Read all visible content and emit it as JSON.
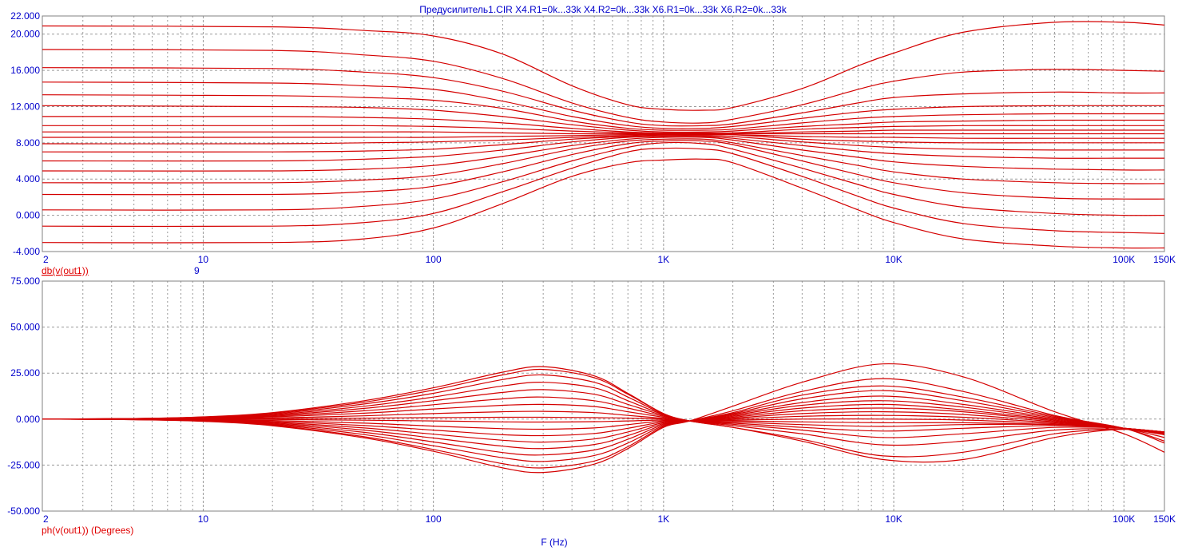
{
  "title": "Предусилитель1.CIR X4.R1=0k...33k X4.R2=0k...33k X6.R1=0k...33k X6.R2=0k...33k",
  "xlabel": "F (Hz)",
  "colors": {
    "trace": "#d40000",
    "axis_text": "#0000cc",
    "grid": "#9a9a9a",
    "frame": "#808080"
  },
  "chart_data": [
    {
      "type": "line",
      "ylabel": "db(v(out1))",
      "cursor_value": "9",
      "x_scale": "log",
      "xlim": [
        2,
        150000
      ],
      "ylim": [
        -4,
        22
      ],
      "x_tick_labels": [
        {
          "value": 2,
          "label": "2"
        },
        {
          "value": 10,
          "label": "10"
        },
        {
          "value": 100,
          "label": "100"
        },
        {
          "value": 1000,
          "label": "1K"
        },
        {
          "value": 10000,
          "label": "10K"
        },
        {
          "value": 100000,
          "label": "100K"
        },
        {
          "value": 150000,
          "label": "150K"
        }
      ],
      "y_tick_labels": [
        {
          "value": 22,
          "label": "22.000"
        },
        {
          "value": 20,
          "label": "20.000"
        },
        {
          "value": 16,
          "label": "16.000"
        },
        {
          "value": 12,
          "label": "12.000"
        },
        {
          "value": 8,
          "label": "8.000"
        },
        {
          "value": 4,
          "label": "4.000"
        },
        {
          "value": 0,
          "label": "0.000"
        },
        {
          "value": -4,
          "label": "-4.000"
        }
      ],
      "x": [
        2,
        20,
        50,
        100,
        200,
        400,
        700,
        1000,
        1500,
        2000,
        4000,
        7000,
        10000,
        20000,
        50000,
        100000,
        150000
      ],
      "series": [
        {
          "values": [
            20.9,
            20.8,
            20.4,
            19.8,
            17.8,
            14.3,
            12.2,
            11.7,
            11.6,
            11.9,
            14.0,
            16.5,
            17.9,
            20.2,
            21.3,
            21.3,
            21.0
          ]
        },
        {
          "values": [
            18.3,
            18.2,
            17.7,
            17.0,
            15.1,
            12.4,
            10.8,
            10.3,
            10.2,
            10.6,
            12.2,
            13.9,
            14.8,
            15.8,
            16.1,
            16.0,
            15.9
          ]
        },
        {
          "values": [
            16.3,
            16.2,
            15.8,
            15.2,
            13.7,
            11.6,
            10.3,
            9.9,
            9.9,
            10.1,
            11.3,
            12.4,
            13.0,
            13.4,
            13.6,
            13.5,
            13.5
          ]
        },
        {
          "values": [
            14.7,
            14.6,
            14.3,
            13.9,
            12.6,
            10.9,
            9.9,
            9.6,
            9.6,
            9.8,
            10.7,
            11.4,
            11.7,
            12.0,
            12.1,
            12.1,
            12.1
          ]
        },
        {
          "values": [
            13.3,
            13.2,
            13.0,
            12.7,
            11.8,
            10.4,
            9.6,
            9.4,
            9.4,
            9.5,
            10.2,
            10.7,
            10.9,
            11.1,
            11.2,
            11.2,
            11.2
          ]
        },
        {
          "values": [
            12.1,
            12.0,
            11.9,
            11.6,
            10.9,
            10.0,
            9.4,
            9.2,
            9.2,
            9.3,
            9.8,
            10.1,
            10.3,
            10.4,
            10.5,
            10.5,
            10.5
          ]
        },
        {
          "values": [
            10.9,
            10.9,
            10.8,
            10.6,
            10.2,
            9.6,
            9.2,
            9.1,
            9.1,
            9.1,
            9.5,
            9.7,
            9.8,
            9.9,
            9.9,
            9.9,
            9.9
          ]
        },
        {
          "values": [
            9.9,
            9.9,
            9.9,
            9.8,
            9.6,
            9.3,
            9.1,
            9.0,
            9.0,
            9.0,
            9.2,
            9.3,
            9.4,
            9.4,
            9.4,
            9.4,
            9.4
          ]
        },
        {
          "values": [
            9.2,
            9.2,
            9.2,
            9.2,
            9.1,
            9.0,
            9.0,
            9.0,
            9.0,
            9.0,
            9.0,
            9.0,
            9.0,
            9.0,
            9.0,
            9.0,
            9.0
          ]
        },
        {
          "values": [
            8.6,
            8.6,
            8.6,
            8.6,
            8.7,
            8.8,
            8.9,
            8.9,
            8.9,
            8.9,
            8.7,
            8.6,
            8.6,
            8.5,
            8.5,
            8.5,
            8.5
          ]
        },
        {
          "values": [
            7.9,
            7.9,
            8.0,
            8.1,
            8.3,
            8.6,
            8.8,
            8.9,
            8.9,
            8.9,
            8.4,
            8.2,
            8.1,
            8.0,
            8.0,
            8.0,
            8.0
          ]
        },
        {
          "values": [
            7.0,
            7.0,
            7.1,
            7.3,
            7.8,
            8.4,
            8.7,
            8.8,
            8.8,
            8.7,
            8.1,
            7.7,
            7.5,
            7.3,
            7.2,
            7.2,
            7.2
          ]
        },
        {
          "values": [
            6.0,
            6.0,
            6.2,
            6.5,
            7.2,
            8.1,
            8.6,
            8.7,
            8.7,
            8.5,
            7.7,
            7.1,
            6.8,
            6.5,
            6.3,
            6.3,
            6.3
          ]
        },
        {
          "values": [
            4.9,
            4.9,
            5.1,
            5.5,
            6.5,
            7.7,
            8.4,
            8.6,
            8.6,
            8.3,
            7.2,
            6.4,
            5.9,
            5.4,
            5.1,
            5.0,
            5.0
          ]
        },
        {
          "values": [
            3.6,
            3.6,
            3.9,
            4.4,
            5.7,
            7.3,
            8.2,
            8.4,
            8.4,
            8.0,
            6.6,
            5.5,
            4.8,
            4.0,
            3.6,
            3.5,
            3.5
          ]
        },
        {
          "values": [
            2.3,
            2.3,
            2.6,
            3.2,
            4.8,
            6.7,
            7.9,
            8.2,
            8.2,
            7.8,
            6.0,
            4.5,
            3.6,
            2.5,
            1.9,
            1.8,
            1.8
          ]
        },
        {
          "values": [
            0.6,
            0.6,
            1.0,
            1.8,
            3.7,
            6.0,
            7.5,
            8.0,
            7.9,
            7.3,
            5.2,
            3.4,
            2.3,
            0.9,
            0.2,
            0.0,
            0.0
          ]
        },
        {
          "values": [
            -1.2,
            -1.2,
            -0.8,
            0.2,
            2.6,
            5.2,
            7.0,
            7.4,
            7.3,
            6.8,
            4.3,
            2.1,
            0.8,
            -0.9,
            -1.7,
            -1.9,
            -2.0
          ]
        },
        {
          "values": [
            -3.0,
            -3.0,
            -2.6,
            -1.4,
            1.3,
            4.3,
            5.8,
            6.1,
            6.2,
            5.8,
            3.0,
            0.6,
            -0.8,
            -2.6,
            -3.4,
            -3.6,
            -3.6
          ]
        }
      ]
    },
    {
      "type": "line",
      "ylabel": "ph(v(out1)) (Degrees)",
      "x_scale": "log",
      "xlim": [
        2,
        150000
      ],
      "ylim": [
        -50,
        75
      ],
      "x_tick_labels": [
        {
          "value": 2,
          "label": "2"
        },
        {
          "value": 10,
          "label": "10"
        },
        {
          "value": 100,
          "label": "100"
        },
        {
          "value": 1000,
          "label": "1K"
        },
        {
          "value": 10000,
          "label": "10K"
        },
        {
          "value": 100000,
          "label": "100K"
        },
        {
          "value": 150000,
          "label": "150K"
        }
      ],
      "y_tick_labels": [
        {
          "value": 75,
          "label": "75.000"
        },
        {
          "value": 50,
          "label": "50.000"
        },
        {
          "value": 25,
          "label": "25.000"
        },
        {
          "value": 0,
          "label": "0.000"
        },
        {
          "value": -25,
          "label": "-25.000"
        },
        {
          "value": -50,
          "label": "-50.000"
        }
      ],
      "x": [
        2,
        5,
        10,
        20,
        50,
        100,
        200,
        300,
        500,
        700,
        1000,
        1300,
        2000,
        4000,
        9000,
        20000,
        50000,
        100000,
        150000
      ],
      "series": [
        {
          "values": [
            0,
            0.3,
            1.2,
            3.5,
            10.0,
            17.0,
            25.5,
            28.5,
            23.5,
            14.0,
            3.0,
            -1.0,
            -4.5,
            -12.0,
            -22.0,
            -22.0,
            -10.0,
            -5.5,
            -7.5
          ]
        },
        {
          "values": [
            0,
            0.3,
            1.1,
            3.2,
            9.2,
            15.8,
            24.0,
            27.0,
            22.5,
            13.5,
            3.0,
            -1.0,
            -4.5,
            -11.0,
            -20.0,
            -18.0,
            -8.0,
            -5.5,
            -7.5
          ]
        },
        {
          "values": [
            0,
            0.3,
            1.0,
            2.8,
            8.2,
            14.0,
            21.5,
            24.0,
            20.0,
            12.0,
            2.7,
            -1.0,
            -3.5,
            -8.0,
            -14.0,
            -12.0,
            -6.0,
            -5.5,
            -7.5
          ]
        },
        {
          "values": [
            0,
            0.2,
            0.8,
            2.4,
            7.0,
            12.0,
            18.0,
            20.0,
            17.0,
            10.0,
            2.4,
            -1.0,
            -2.8,
            -6.0,
            -10.0,
            -8.0,
            -4.5,
            -5.0,
            -7.5
          ]
        },
        {
          "values": [
            0,
            0.2,
            0.7,
            2.0,
            5.8,
            10.0,
            14.5,
            16.0,
            13.5,
            8.0,
            2.0,
            -1.0,
            -2.2,
            -4.5,
            -6.5,
            -5.0,
            -3.5,
            -5.0,
            -7.0
          ]
        },
        {
          "values": [
            0,
            0.2,
            0.6,
            1.6,
            4.5,
            7.8,
            11.0,
            12.0,
            10.0,
            6.0,
            1.5,
            -1.0,
            -1.6,
            -3.0,
            -4.0,
            -3.0,
            -3.0,
            -5.0,
            -7.0
          ]
        },
        {
          "values": [
            0,
            0.1,
            0.4,
            1.2,
            3.2,
            5.5,
            7.5,
            8.0,
            6.8,
            4.0,
            1.0,
            -1.0,
            -1.0,
            -1.5,
            -2.0,
            -2.0,
            -3.0,
            -5.0,
            -7.0
          ]
        },
        {
          "values": [
            0,
            0.1,
            0.2,
            0.6,
            1.8,
            3.0,
            4.0,
            4.2,
            3.5,
            2.0,
            0.4,
            -1.0,
            -0.5,
            0.0,
            0.0,
            -0.5,
            -2.5,
            -5.0,
            -7.0
          ]
        },
        {
          "values": [
            0,
            0.0,
            0.1,
            0.2,
            0.5,
            0.8,
            1.0,
            1.0,
            0.8,
            0.5,
            0.0,
            -1.0,
            0.0,
            1.5,
            2.0,
            1.0,
            -2.0,
            -5.0,
            -7.0
          ]
        },
        {
          "values": [
            0,
            -0.1,
            -0.1,
            -0.2,
            -0.6,
            -1.0,
            -1.5,
            -1.6,
            -1.4,
            -1.0,
            -0.5,
            -1.0,
            0.5,
            3.0,
            4.0,
            2.5,
            -1.5,
            -5.0,
            -7.0
          ]
        },
        {
          "values": [
            0,
            -0.1,
            -0.3,
            -0.8,
            -2.2,
            -3.8,
            -5.2,
            -5.5,
            -4.8,
            -3.0,
            -1.0,
            -1.0,
            1.0,
            4.5,
            6.0,
            4.0,
            -1.0,
            -5.0,
            -7.5
          ]
        },
        {
          "values": [
            0,
            -0.1,
            -0.5,
            -1.3,
            -3.5,
            -6.0,
            -8.5,
            -9.0,
            -7.8,
            -5.0,
            -1.5,
            -1.0,
            1.5,
            6.0,
            8.0,
            5.0,
            -0.5,
            -5.0,
            -7.5
          ]
        },
        {
          "values": [
            0,
            -0.2,
            -0.6,
            -1.7,
            -4.8,
            -8.2,
            -11.5,
            -12.5,
            -10.8,
            -7.0,
            -2.0,
            -1.0,
            2.0,
            7.5,
            10.0,
            6.5,
            0.0,
            -5.0,
            -8.0
          ]
        },
        {
          "values": [
            0,
            -0.2,
            -0.7,
            -2.1,
            -6.0,
            -10.3,
            -14.7,
            -16.0,
            -13.8,
            -9.0,
            -2.5,
            -1.0,
            2.5,
            9.0,
            12.5,
            8.0,
            0.5,
            -5.0,
            -8.5
          ]
        },
        {
          "values": [
            0,
            -0.2,
            -0.8,
            -2.5,
            -7.2,
            -12.4,
            -18.2,
            -19.5,
            -16.8,
            -11.0,
            -3.0,
            -1.0,
            3.0,
            11.0,
            15.5,
            10.0,
            1.0,
            -5.0,
            -10.0
          ]
        },
        {
          "values": [
            0,
            -0.3,
            -1.0,
            -2.9,
            -8.4,
            -14.5,
            -21.0,
            -23.0,
            -19.8,
            -13.0,
            -3.5,
            -1.0,
            3.5,
            13.0,
            18.0,
            12.0,
            1.5,
            -5.0,
            -12.0
          ]
        },
        {
          "values": [
            0,
            -0.3,
            -1.1,
            -3.3,
            -9.6,
            -16.5,
            -24.2,
            -26.5,
            -22.8,
            -15.0,
            -4.0,
            -1.0,
            4.5,
            15.0,
            22.0,
            15.0,
            2.0,
            -5.0,
            -13.0
          ]
        },
        {
          "values": [
            0,
            -0.3,
            -1.2,
            -3.6,
            -10.2,
            -17.5,
            -26.5,
            -29.0,
            -24.5,
            -16.0,
            -4.5,
            -1.0,
            7.0,
            20.0,
            30.0,
            23.0,
            4.0,
            -8.0,
            -18.0
          ]
        }
      ]
    }
  ]
}
